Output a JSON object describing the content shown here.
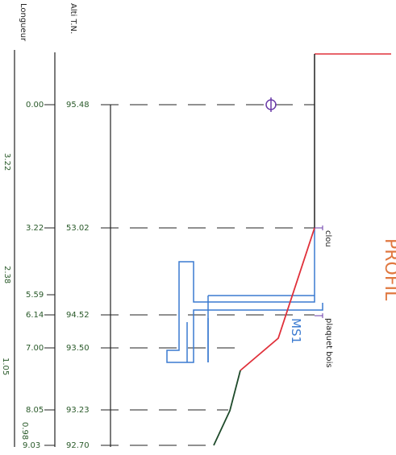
{
  "headers": {
    "longueur": "Longueur",
    "alti": "Alti T.N."
  },
  "profile_title_partial": "PROFIL",
  "stations": [
    {
      "longueur": "0.00",
      "alti": "95.48"
    },
    {
      "longueur": "3.22",
      "alti": "53.02"
    },
    {
      "longueur": "5.59",
      "alti": ""
    },
    {
      "longueur": "6.14",
      "alti": "94.52"
    },
    {
      "longueur": "7.00",
      "alti": "93.50"
    },
    {
      "longueur": "8.05",
      "alti": "93.23"
    },
    {
      "longueur": "9.03",
      "alti": "92.70"
    }
  ],
  "partial_distances": [
    "3.22",
    "2.38",
    "1.05",
    "0.98"
  ],
  "labels": {
    "clou": "clou",
    "plaquet": "plaquet bois",
    "ms1": "MS1"
  },
  "colors": {
    "red": "#e0303a",
    "green": "#1e4a2a",
    "blue": "#3a7ad0",
    "purple": "#6a3aa8",
    "orange": "#e07840",
    "dark": "#222222",
    "label_green": "#2a5a2a"
  }
}
